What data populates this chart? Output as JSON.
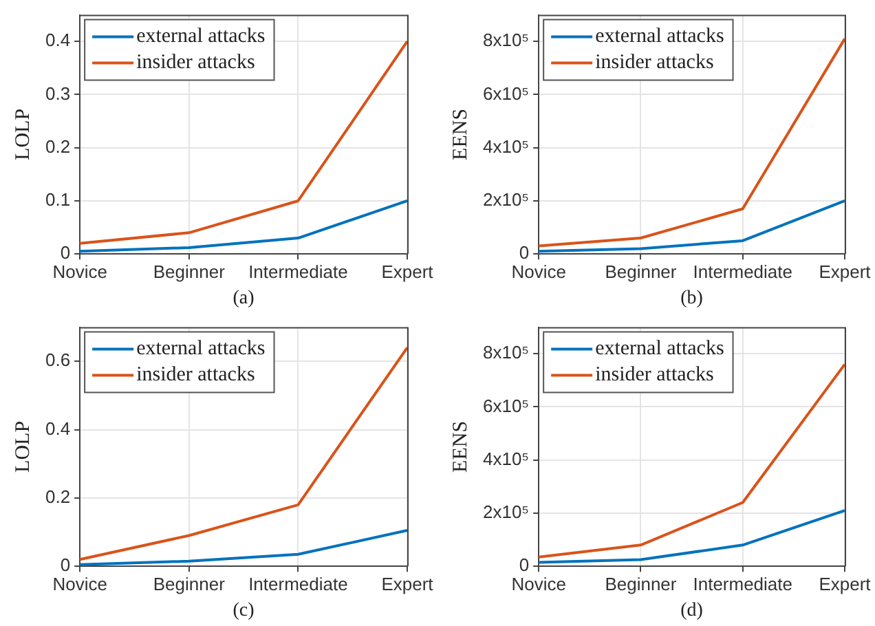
{
  "chart_data": [
    {
      "type": "line",
      "xlabel": "(a)",
      "ylabel": "LOLP",
      "categories": [
        "Novice",
        "Beginner",
        "Intermediate",
        "Expert"
      ],
      "series": [
        {
          "name": "external attacks",
          "color": "#0072bd",
          "values": [
            0.005,
            0.012,
            0.03,
            0.1
          ]
        },
        {
          "name": "insider attacks",
          "color": "#d95319",
          "values": [
            0.02,
            0.04,
            0.1,
            0.4
          ]
        }
      ],
      "ylim": [
        0,
        0.45
      ],
      "yticks": [
        0,
        0.1,
        0.2,
        0.3,
        0.4
      ],
      "grid": true,
      "legend": "top left",
      "marker": "none",
      "line_style": "solid"
    },
    {
      "type": "line",
      "xlabel": "(b)",
      "ylabel": "EENS",
      "categories": [
        "Novice",
        "Beginner",
        "Intermediate",
        "Expert"
      ],
      "series": [
        {
          "name": "external attacks",
          "color": "#0072bd",
          "values": [
            10000,
            20000,
            50000,
            200000
          ]
        },
        {
          "name": "insider attacks",
          "color": "#d95319",
          "values": [
            30000,
            60000,
            170000,
            810000
          ]
        }
      ],
      "ylim": [
        0,
        900000
      ],
      "yticks": [
        0,
        {
          "value": 200000,
          "label": "2x10⁵"
        },
        {
          "value": 400000,
          "label": "4x10⁵"
        },
        {
          "value": 600000,
          "label": "6x10⁵"
        },
        {
          "value": 800000,
          "label": "8x10⁵"
        }
      ],
      "grid": true,
      "legend": "top left",
      "marker": "none",
      "line_style": "solid"
    },
    {
      "type": "line",
      "xlabel": "(c)",
      "ylabel": "LOLP",
      "categories": [
        "Novice",
        "Beginner",
        "Intermediate",
        "Expert"
      ],
      "series": [
        {
          "name": "external attacks",
          "color": "#0072bd",
          "values": [
            0.005,
            0.015,
            0.035,
            0.105
          ]
        },
        {
          "name": "insider attacks",
          "color": "#d95319",
          "values": [
            0.02,
            0.09,
            0.18,
            0.64
          ]
        }
      ],
      "ylim": [
        0,
        0.7
      ],
      "yticks": [
        0,
        0.2,
        0.4,
        0.6
      ],
      "grid": true,
      "legend": "top left",
      "marker": "none",
      "line_style": "solid"
    },
    {
      "type": "line",
      "xlabel": "(d)",
      "ylabel": "EENS",
      "categories": [
        "Novice",
        "Beginner",
        "Intermediate",
        "Expert"
      ],
      "series": [
        {
          "name": "external attacks",
          "color": "#0072bd",
          "values": [
            15000,
            25000,
            80000,
            210000
          ]
        },
        {
          "name": "insider attacks",
          "color": "#d95319",
          "values": [
            35000,
            80000,
            240000,
            760000
          ]
        }
      ],
      "ylim": [
        0,
        900000
      ],
      "yticks": [
        0,
        {
          "value": 200000,
          "label": "2x10⁵"
        },
        {
          "value": 400000,
          "label": "4x10⁵"
        },
        {
          "value": 600000,
          "label": "6x10⁵"
        },
        {
          "value": 800000,
          "label": "8x10⁵"
        }
      ],
      "grid": true,
      "legend": "top left",
      "marker": "none",
      "line_style": "solid"
    }
  ]
}
